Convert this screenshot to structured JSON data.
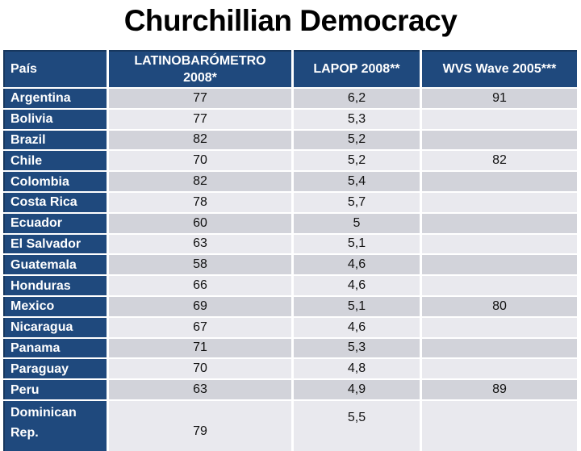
{
  "title": "Churchillian Democracy",
  "colors": {
    "blue": "#1F497D",
    "blue-border": "#17375E",
    "band-a": "#D2D3DA",
    "band-b": "#E9E9EE",
    "num-ink": "#111111",
    "title-ink": "#000000"
  },
  "table": {
    "columns": [
      "País",
      "LATINOBARÓMETRO 2008*",
      "LAPOP 2008**",
      "WVS Wave 2005***"
    ],
    "rows": [
      {
        "country": "Argentina",
        "latino": "77",
        "lapop": "6,2",
        "wvs": "91"
      },
      {
        "country": "Bolivia",
        "latino": "77",
        "lapop": "5,3",
        "wvs": ""
      },
      {
        "country": "Brazil",
        "latino": "82",
        "lapop": "5,2",
        "wvs": ""
      },
      {
        "country": "Chile",
        "latino": "70",
        "lapop": "5,2",
        "wvs": "82"
      },
      {
        "country": "Colombia",
        "latino": "82",
        "lapop": "5,4",
        "wvs": ""
      },
      {
        "country": "Costa Rica",
        "latino": "78",
        "lapop": "5,7",
        "wvs": ""
      },
      {
        "country": "Ecuador",
        "latino": "60",
        "lapop": "5",
        "wvs": ""
      },
      {
        "country": "El Salvador",
        "latino": "63",
        "lapop": "5,1",
        "wvs": ""
      },
      {
        "country": "Guatemala",
        "latino": "58",
        "lapop": "4,6",
        "wvs": ""
      },
      {
        "country": "Honduras",
        "latino": "66",
        "lapop": "4,6",
        "wvs": ""
      },
      {
        "country": "Mexico",
        "latino": "69",
        "lapop": "5,1",
        "wvs": "80"
      },
      {
        "country": "Nicaragua",
        "latino": "67",
        "lapop": "4,6",
        "wvs": ""
      },
      {
        "country": "Panama",
        "latino": "71",
        "lapop": "5,3",
        "wvs": ""
      },
      {
        "country": "Paraguay",
        "latino": "70",
        "lapop": "4,8",
        "wvs": ""
      },
      {
        "country": "Peru",
        "latino": "63",
        "lapop": "4,9",
        "wvs": "89"
      },
      {
        "country": "Dominican Rep.",
        "latino": "79",
        "lapop": "5,5",
        "wvs": ""
      }
    ]
  }
}
